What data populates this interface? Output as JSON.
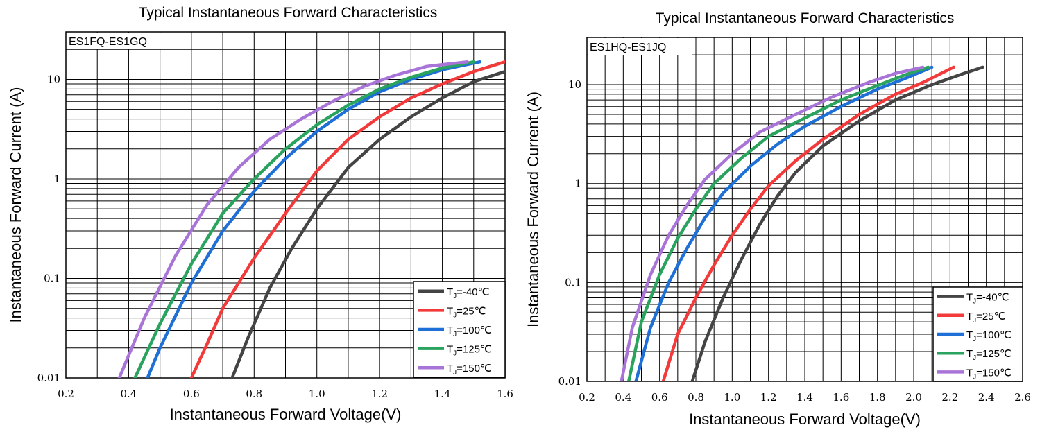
{
  "chart_data": [
    {
      "type": "line",
      "title": "Typical Instantaneous Forward Characteristics",
      "part_label": "ES1FQ-ES1GQ",
      "xlabel": "Instantaneous Forward Voltage(V)",
      "ylabel": "Instantaneous Forward Current (A)",
      "xlim": [
        0.2,
        1.6
      ],
      "ylim": [
        0.01,
        30
      ],
      "yscale": "log",
      "x_ticks": [
        "0.2",
        "0.4",
        "0.6",
        "0.8",
        "1.0",
        "1.2",
        "1.4",
        "1.6"
      ],
      "y_ticks": [
        "0.01",
        "0.1",
        "1",
        "10"
      ],
      "grid": true,
      "legend_position": "bottom-right",
      "series": [
        {
          "legend_prefix": "T",
          "legend_sub": "J",
          "legend_suffix": "=-40℃",
          "color": "#444444",
          "x": [
            0.73,
            0.78,
            0.85,
            0.92,
            1.0,
            1.1,
            1.2,
            1.3,
            1.4,
            1.5,
            1.6
          ],
          "y": [
            0.01,
            0.025,
            0.08,
            0.2,
            0.5,
            1.3,
            2.5,
            4.2,
            6.5,
            9.5,
            12
          ]
        },
        {
          "legend_prefix": "T",
          "legend_sub": "J",
          "legend_suffix": "=25℃",
          "color": "#f23a3a",
          "x": [
            0.6,
            0.65,
            0.7,
            0.8,
            0.9,
            1.0,
            1.1,
            1.2,
            1.3,
            1.4,
            1.5,
            1.6
          ],
          "y": [
            0.01,
            0.022,
            0.05,
            0.16,
            0.45,
            1.2,
            2.5,
            4.2,
            6.5,
            9,
            12,
            15
          ]
        },
        {
          "legend_prefix": "T",
          "legend_sub": "J",
          "legend_suffix": "=100℃",
          "color": "#1e6fd6",
          "x": [
            0.46,
            0.5,
            0.6,
            0.7,
            0.8,
            0.9,
            1.0,
            1.1,
            1.2,
            1.3,
            1.4,
            1.52
          ],
          "y": [
            0.01,
            0.02,
            0.09,
            0.3,
            0.75,
            1.6,
            3.0,
            5.0,
            7.5,
            10,
            12.5,
            15
          ]
        },
        {
          "legend_prefix": "T",
          "legend_sub": "J",
          "legend_suffix": "=125℃",
          "color": "#2aa35e",
          "x": [
            0.42,
            0.5,
            0.6,
            0.7,
            0.8,
            0.9,
            1.0,
            1.1,
            1.2,
            1.3,
            1.4,
            1.5
          ],
          "y": [
            0.01,
            0.035,
            0.14,
            0.45,
            1.0,
            2.0,
            3.5,
            5.5,
            8.0,
            10.5,
            13,
            15
          ]
        },
        {
          "legend_prefix": "T",
          "legend_sub": "J",
          "legend_suffix": "=150℃",
          "color": "#a974d8",
          "x": [
            0.37,
            0.45,
            0.55,
            0.65,
            0.75,
            0.85,
            0.95,
            1.05,
            1.15,
            1.25,
            1.35,
            1.48
          ],
          "y": [
            0.01,
            0.04,
            0.17,
            0.55,
            1.3,
            2.5,
            4.0,
            6.0,
            8.5,
            11,
            13.5,
            15
          ]
        }
      ]
    },
    {
      "type": "line",
      "title": "Typical Instantaneous Forward Characteristics",
      "part_label": "ES1HQ-ES1JQ",
      "xlabel": "Instantaneous Forward Voltage(V)",
      "ylabel": "Instantaneous Forward Current (A)",
      "xlim": [
        0.2,
        2.6
      ],
      "ylim": [
        0.01,
        30
      ],
      "yscale": "log",
      "x_ticks": [
        "0.2",
        "0.4",
        "0.6",
        "0.8",
        "1.0",
        "1.2",
        "1.4",
        "1.6",
        "1.8",
        "2.0",
        "2.2",
        "2.4",
        "2.6"
      ],
      "y_ticks": [
        "0.01",
        "0.1",
        "1",
        "10"
      ],
      "grid": true,
      "legend_position": "bottom-right",
      "series": [
        {
          "legend_prefix": "T",
          "legend_sub": "J",
          "legend_suffix": "=-40℃",
          "color": "#444444",
          "x": [
            0.78,
            0.85,
            0.95,
            1.05,
            1.15,
            1.25,
            1.35,
            1.5,
            1.7,
            1.9,
            2.1,
            2.25,
            2.38
          ],
          "y": [
            0.01,
            0.025,
            0.07,
            0.17,
            0.38,
            0.75,
            1.3,
            2.4,
            4.3,
            7.0,
            10,
            12.5,
            15
          ]
        },
        {
          "legend_prefix": "T",
          "legend_sub": "J",
          "legend_suffix": "=25℃",
          "color": "#f23a3a",
          "x": [
            0.62,
            0.7,
            0.8,
            0.9,
            1.0,
            1.1,
            1.2,
            1.35,
            1.5,
            1.7,
            1.9,
            2.05,
            2.22
          ],
          "y": [
            0.01,
            0.03,
            0.07,
            0.15,
            0.3,
            0.55,
            0.95,
            1.7,
            2.8,
            5.0,
            8.0,
            10.5,
            15
          ]
        },
        {
          "legend_prefix": "T",
          "legend_sub": "J",
          "legend_suffix": "=100℃",
          "color": "#1e6fd6",
          "x": [
            0.47,
            0.55,
            0.65,
            0.75,
            0.85,
            0.95,
            1.1,
            1.25,
            1.4,
            1.6,
            1.8,
            1.95,
            2.1
          ],
          "y": [
            0.01,
            0.035,
            0.1,
            0.22,
            0.45,
            0.8,
            1.5,
            2.5,
            3.8,
            6.0,
            9.0,
            11.5,
            15
          ]
        },
        {
          "legend_prefix": "T",
          "legend_sub": "J",
          "legend_suffix": "=125℃",
          "color": "#2aa35e",
          "x": [
            0.43,
            0.5,
            0.6,
            0.7,
            0.8,
            0.9,
            1.05,
            1.2,
            1.4,
            1.6,
            1.8,
            1.95,
            2.08
          ],
          "y": [
            0.01,
            0.04,
            0.12,
            0.28,
            0.55,
            1.0,
            1.8,
            3.0,
            4.6,
            7.0,
            9.8,
            12.5,
            15
          ]
        },
        {
          "legend_prefix": "T",
          "legend_sub": "J",
          "legend_suffix": "=150℃",
          "color": "#a974d8",
          "x": [
            0.39,
            0.45,
            0.55,
            0.65,
            0.75,
            0.85,
            1.0,
            1.15,
            1.35,
            1.55,
            1.75,
            1.9,
            2.05
          ],
          "y": [
            0.01,
            0.035,
            0.12,
            0.3,
            0.6,
            1.1,
            2.0,
            3.3,
            5.0,
            7.5,
            10.5,
            13,
            15
          ]
        }
      ]
    }
  ]
}
